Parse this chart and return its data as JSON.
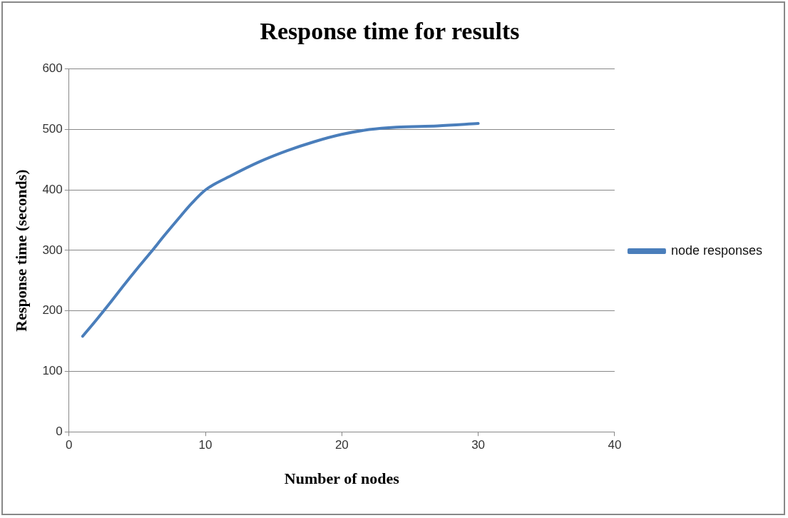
{
  "chart_data": {
    "type": "line",
    "title": "Response time for results",
    "xlabel": "Number of nodes",
    "ylabel": "Response time (seconds)",
    "x": [
      1,
      2,
      3,
      4,
      5,
      6,
      7,
      8,
      9,
      10,
      12,
      14,
      16,
      18,
      20,
      22,
      24,
      27,
      30
    ],
    "series": [
      {
        "name": "node responses",
        "color": "#4a7ebb",
        "values": [
          158,
          185,
          213,
          242,
          270,
          297,
          325,
          352,
          378,
          400,
          425,
          447,
          465,
          480,
          492,
          500,
          504,
          506,
          510
        ]
      }
    ],
    "xlim": [
      0,
      40
    ],
    "xticks": [
      0,
      10,
      20,
      30,
      40
    ],
    "ylim": [
      0,
      600
    ],
    "yticks": [
      0,
      100,
      200,
      300,
      400,
      500,
      600
    ],
    "grid": "y",
    "legend": "right",
    "marker": "none",
    "line_style": "solid"
  }
}
